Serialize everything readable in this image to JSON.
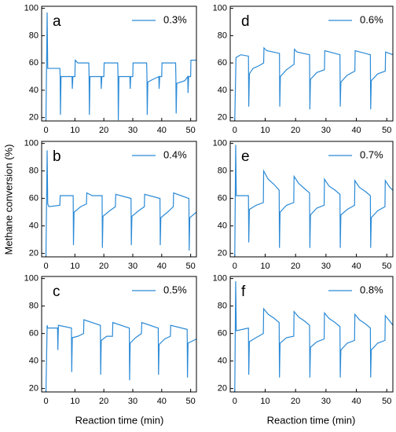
{
  "ylabel": "Methane conversion (%)",
  "xlabel": "Reaction time (min)",
  "chart_data": [
    {
      "type": "line",
      "label": "a",
      "xlim": [
        -1.5,
        52
      ],
      "ylim": [
        17.5,
        101.5
      ],
      "xticks": [
        0,
        10,
        20,
        30,
        40,
        50
      ],
      "yticks": [
        20,
        40,
        60,
        80,
        100
      ],
      "series": [
        {
          "name": "0.3%",
          "color": "#2b8ad6",
          "x": [
            0,
            0.4,
            0.6,
            4.8,
            4.9,
            5.0,
            5.2,
            9.0,
            9.1,
            9.3,
            10,
            10.1,
            11,
            14.8,
            14.9,
            15,
            15.2,
            19,
            19.1,
            19.3,
            20,
            20.1,
            24.8,
            24.9,
            25,
            25.2,
            29,
            29.1,
            29.3,
            30,
            30.1,
            34.8,
            34.9,
            35,
            35.2,
            37,
            39,
            39.1,
            39.3,
            40,
            40.1,
            44.8,
            44.9,
            45,
            45.2,
            48,
            49,
            49.1,
            49.3,
            50,
            50.1,
            52
          ],
          "values": [
            18,
            97,
            56,
            56,
            50,
            22,
            50,
            50,
            41,
            50,
            50,
            62,
            60,
            60,
            50,
            22,
            50,
            50,
            41,
            50,
            50,
            60,
            60,
            50,
            18,
            50,
            50,
            41,
            50,
            50,
            60,
            60,
            50,
            22,
            46,
            48,
            50,
            41,
            50,
            50,
            60,
            60,
            50,
            23,
            45,
            47,
            50,
            38,
            50,
            50,
            62,
            62
          ]
        }
      ]
    },
    {
      "type": "line",
      "label": "b",
      "xlim": [
        -1.5,
        52
      ],
      "ylim": [
        17.5,
        101.5
      ],
      "xticks": [
        0,
        10,
        20,
        30,
        40,
        50
      ],
      "yticks": [
        20,
        40,
        60,
        80,
        100
      ],
      "series": [
        {
          "name": "0.4%",
          "color": "#2b8ad6",
          "x": [
            0,
            0.4,
            0.6,
            1,
            4.8,
            4.9,
            9.4,
            9.5,
            9.7,
            12,
            14,
            14.1,
            16,
            19.4,
            19.5,
            19.7,
            22,
            24,
            24.1,
            29.4,
            29.5,
            29.7,
            32,
            34,
            34.1,
            39.4,
            39.5,
            39.7,
            42,
            44,
            44.1,
            49.4,
            49.5,
            49.7,
            52
          ],
          "values": [
            18,
            95,
            56,
            54,
            55,
            62,
            62,
            26,
            50,
            54,
            56,
            64,
            62,
            62,
            24,
            47,
            51,
            54,
            63,
            60,
            26,
            47,
            51,
            54,
            63,
            60,
            26,
            46,
            50,
            54,
            64,
            60,
            22,
            46,
            50
          ]
        }
      ]
    },
    {
      "type": "line",
      "label": "c",
      "xlim": [
        -1.5,
        52
      ],
      "ylim": [
        17.5,
        101.5
      ],
      "xticks": [
        0,
        10,
        20,
        30,
        40,
        50
      ],
      "yticks": [
        20,
        40,
        60,
        80,
        100
      ],
      "series": [
        {
          "name": "0.5%",
          "color": "#2b8ad6",
          "x": [
            0,
            0.4,
            0.6,
            4,
            4.1,
            4.3,
            8.8,
            8.9,
            9.1,
            11,
            13,
            13.1,
            18.8,
            18.9,
            19.1,
            21,
            23,
            23.1,
            28.8,
            28.9,
            29.1,
            31,
            33,
            33.1,
            38.8,
            38.9,
            39.1,
            41,
            43,
            43.1,
            48.8,
            48.9,
            49.1,
            52
          ],
          "values": [
            18,
            66,
            64,
            64,
            48,
            66,
            64,
            32,
            57,
            58,
            60,
            70,
            66,
            30,
            55,
            58,
            58,
            68,
            64,
            26,
            53,
            57,
            60,
            68,
            64,
            30,
            52,
            56,
            58,
            66,
            63,
            28,
            53,
            56
          ]
        }
      ]
    },
    {
      "type": "line",
      "label": "d",
      "xlim": [
        -1.5,
        52
      ],
      "ylim": [
        17.5,
        101.5
      ],
      "xticks": [
        0,
        10,
        20,
        30,
        40,
        50
      ],
      "yticks": [
        20,
        40,
        60,
        80,
        100
      ],
      "series": [
        {
          "name": "0.6%",
          "color": "#2b8ad6",
          "x": [
            0,
            0.4,
            2,
            4.5,
            4.6,
            4.8,
            6,
            8,
            9.5,
            9.6,
            10.5,
            14.7,
            14.8,
            15,
            17,
            19.5,
            19.6,
            20.5,
            24.6,
            24.7,
            24.9,
            27,
            29.5,
            29.6,
            34.6,
            34.7,
            34.9,
            37,
            39.5,
            39.6,
            44.6,
            44.7,
            44.9,
            47,
            49.5,
            49.6,
            52
          ],
          "values": [
            18,
            64,
            66,
            65,
            28,
            52,
            56,
            58,
            60,
            71,
            69,
            67,
            28,
            50,
            55,
            59,
            70,
            68,
            66,
            26,
            48,
            53,
            55,
            69,
            66,
            28,
            46,
            51,
            54,
            69,
            66,
            26,
            47,
            52,
            54,
            68,
            66
          ]
        }
      ]
    },
    {
      "type": "line",
      "label": "e",
      "xlim": [
        -1.5,
        52
      ],
      "ylim": [
        17.5,
        101.5
      ],
      "xticks": [
        0,
        10,
        20,
        30,
        40,
        50
      ],
      "yticks": [
        20,
        40,
        60,
        80,
        100
      ],
      "series": [
        {
          "name": "0.7%",
          "color": "#2b8ad6",
          "x": [
            0,
            0.3,
            0.5,
            4.5,
            4.6,
            4.8,
            7,
            9.4,
            9.5,
            11,
            13,
            14.6,
            14.7,
            14.9,
            17,
            19.4,
            19.5,
            21,
            23,
            24.6,
            24.7,
            24.9,
            27,
            29.4,
            29.5,
            31,
            33,
            34.6,
            34.7,
            34.9,
            37,
            39.4,
            39.5,
            41,
            43,
            44.6,
            44.7,
            44.9,
            47,
            49.4,
            49.5,
            51,
            52
          ],
          "values": [
            18,
            99,
            62,
            62,
            28,
            52,
            55,
            57,
            80,
            74,
            70,
            66,
            24,
            50,
            55,
            57,
            76,
            71,
            67,
            64,
            24,
            48,
            53,
            55,
            74,
            69,
            66,
            63,
            24,
            48,
            52,
            55,
            73,
            68,
            65,
            62,
            24,
            46,
            51,
            54,
            73,
            68,
            66
          ]
        }
      ]
    },
    {
      "type": "line",
      "label": "f",
      "xlim": [
        -1.5,
        52
      ],
      "ylim": [
        17.5,
        101.5
      ],
      "xticks": [
        0,
        10,
        20,
        30,
        40,
        50
      ],
      "yticks": [
        20,
        40,
        60,
        80,
        100
      ],
      "series": [
        {
          "name": "0.8%",
          "color": "#2b8ad6",
          "x": [
            0,
            0.3,
            0.5,
            4.5,
            4.6,
            4.8,
            7,
            9.4,
            9.5,
            11,
            13,
            14.6,
            14.7,
            14.9,
            17,
            19.4,
            19.5,
            21,
            23,
            24.6,
            24.7,
            24.9,
            27,
            29.4,
            29.5,
            31,
            33,
            34.6,
            34.7,
            34.9,
            37,
            39.4,
            39.5,
            41,
            43,
            44.6,
            44.7,
            44.9,
            47,
            49.4,
            49.5,
            51,
            52
          ],
          "values": [
            18,
            98,
            62,
            64,
            30,
            54,
            57,
            60,
            78,
            74,
            71,
            68,
            28,
            53,
            57,
            58,
            76,
            72,
            69,
            66,
            28,
            50,
            54,
            56,
            75,
            71,
            68,
            65,
            28,
            48,
            53,
            55,
            74,
            70,
            67,
            64,
            28,
            48,
            53,
            55,
            73,
            69,
            66
          ]
        }
      ]
    }
  ]
}
